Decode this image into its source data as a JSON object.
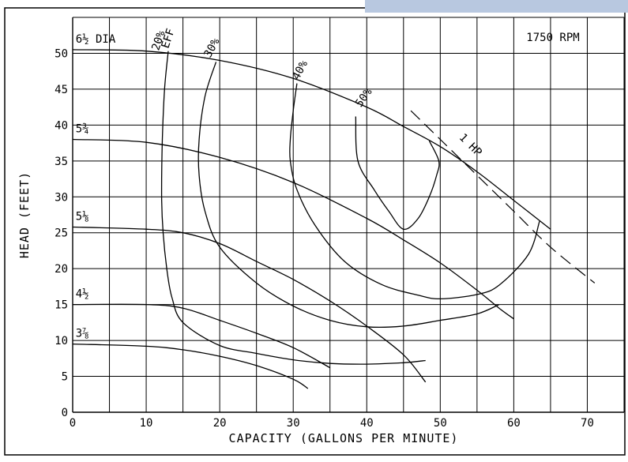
{
  "chart_data": {
    "type": "line",
    "title": "",
    "annotation": "1750 RPM",
    "xlabel": "CAPACITY (GALLONS PER MINUTE)",
    "ylabel": "HEAD (FEET)",
    "xlim": [
      0,
      75
    ],
    "ylim": [
      0,
      55
    ],
    "x_ticks": [
      0,
      10,
      20,
      30,
      40,
      50,
      60,
      70
    ],
    "y_ticks": [
      0,
      5,
      10,
      15,
      20,
      25,
      30,
      35,
      40,
      45,
      50
    ],
    "grid": true,
    "impeller_curves": [
      {
        "label": "6½ DIA",
        "points": [
          [
            0,
            50.5
          ],
          [
            10,
            50.3
          ],
          [
            20,
            49
          ],
          [
            30,
            46.5
          ],
          [
            40,
            42.5
          ],
          [
            45,
            39.8
          ],
          [
            50,
            37
          ],
          [
            55,
            33.5
          ],
          [
            60,
            29.5
          ],
          [
            65,
            25.5
          ]
        ]
      },
      {
        "label": "5¾",
        "points": [
          [
            0,
            38
          ],
          [
            10,
            37.6
          ],
          [
            20,
            35.5
          ],
          [
            30,
            32
          ],
          [
            40,
            27
          ],
          [
            45,
            24
          ],
          [
            50,
            20.8
          ],
          [
            55,
            17
          ],
          [
            58,
            14.5
          ],
          [
            60,
            13
          ]
        ]
      },
      {
        "label": "5⅛",
        "points": [
          [
            0,
            25.8
          ],
          [
            10,
            25.5
          ],
          [
            15,
            25
          ],
          [
            20,
            23.5
          ],
          [
            25,
            21
          ],
          [
            30,
            18.5
          ],
          [
            35,
            15.5
          ],
          [
            40,
            12
          ],
          [
            45,
            8
          ],
          [
            48,
            4.2
          ]
        ]
      },
      {
        "label": "4½",
        "points": [
          [
            0,
            15
          ],
          [
            10,
            15
          ],
          [
            15,
            14.5
          ],
          [
            20,
            12.8
          ],
          [
            25,
            11
          ],
          [
            30,
            9
          ],
          [
            35,
            6.2
          ]
        ]
      },
      {
        "label": "3⅞",
        "points": [
          [
            0,
            9.5
          ],
          [
            10,
            9.2
          ],
          [
            15,
            8.7
          ],
          [
            20,
            7.8
          ],
          [
            25,
            6.5
          ],
          [
            30,
            4.6
          ],
          [
            32,
            3.3
          ]
        ]
      }
    ],
    "efficiency_curves": [
      {
        "label": "20% EFF",
        "points": [
          [
            13,
            50.3
          ],
          [
            12.5,
            45
          ],
          [
            12.2,
            38
          ],
          [
            12.1,
            30
          ],
          [
            12.3,
            25
          ],
          [
            12.8,
            20
          ],
          [
            13.5,
            16
          ],
          [
            15,
            12.5
          ],
          [
            20,
            9.3
          ],
          [
            25,
            8.2
          ],
          [
            30,
            7.3
          ],
          [
            35,
            6.8
          ],
          [
            40,
            6.7
          ],
          [
            45,
            6.9
          ],
          [
            48,
            7.2
          ]
        ]
      },
      {
        "label": "30%",
        "points": [
          [
            19.5,
            48.8
          ],
          [
            18,
            44
          ],
          [
            17.2,
            38
          ],
          [
            17.2,
            33
          ],
          [
            18,
            28
          ],
          [
            20,
            23
          ],
          [
            25,
            18
          ],
          [
            30,
            14.8
          ],
          [
            35,
            12.8
          ],
          [
            40,
            11.9
          ],
          [
            45,
            12
          ],
          [
            50,
            12.8
          ],
          [
            55,
            13.7
          ],
          [
            58,
            15
          ]
        ]
      },
      {
        "label": "40%",
        "points": [
          [
            30.5,
            45.8
          ],
          [
            30,
            42
          ],
          [
            29.6,
            38
          ],
          [
            29.6,
            35
          ],
          [
            30.5,
            31
          ],
          [
            33,
            26
          ],
          [
            37,
            21
          ],
          [
            42,
            17.8
          ],
          [
            47,
            16.3
          ],
          [
            50,
            15.8
          ],
          [
            55,
            16.4
          ],
          [
            58,
            17.7
          ],
          [
            62,
            22
          ],
          [
            63.5,
            26.6
          ]
        ]
      },
      {
        "label": "50%",
        "points": [
          [
            38.5,
            41.2
          ],
          [
            38.8,
            35
          ],
          [
            41,
            31
          ],
          [
            43,
            28
          ],
          [
            45,
            25.5
          ],
          [
            47,
            27
          ],
          [
            48.5,
            30
          ],
          [
            49.5,
            33
          ],
          [
            49.8,
            35
          ],
          [
            48.5,
            37.8
          ]
        ]
      }
    ],
    "power_curves": [
      {
        "label": "1 HP",
        "points": [
          [
            46,
            42
          ],
          [
            50,
            38
          ],
          [
            55,
            33
          ],
          [
            60,
            28
          ],
          [
            65,
            23
          ],
          [
            71,
            18
          ]
        ]
      }
    ]
  }
}
